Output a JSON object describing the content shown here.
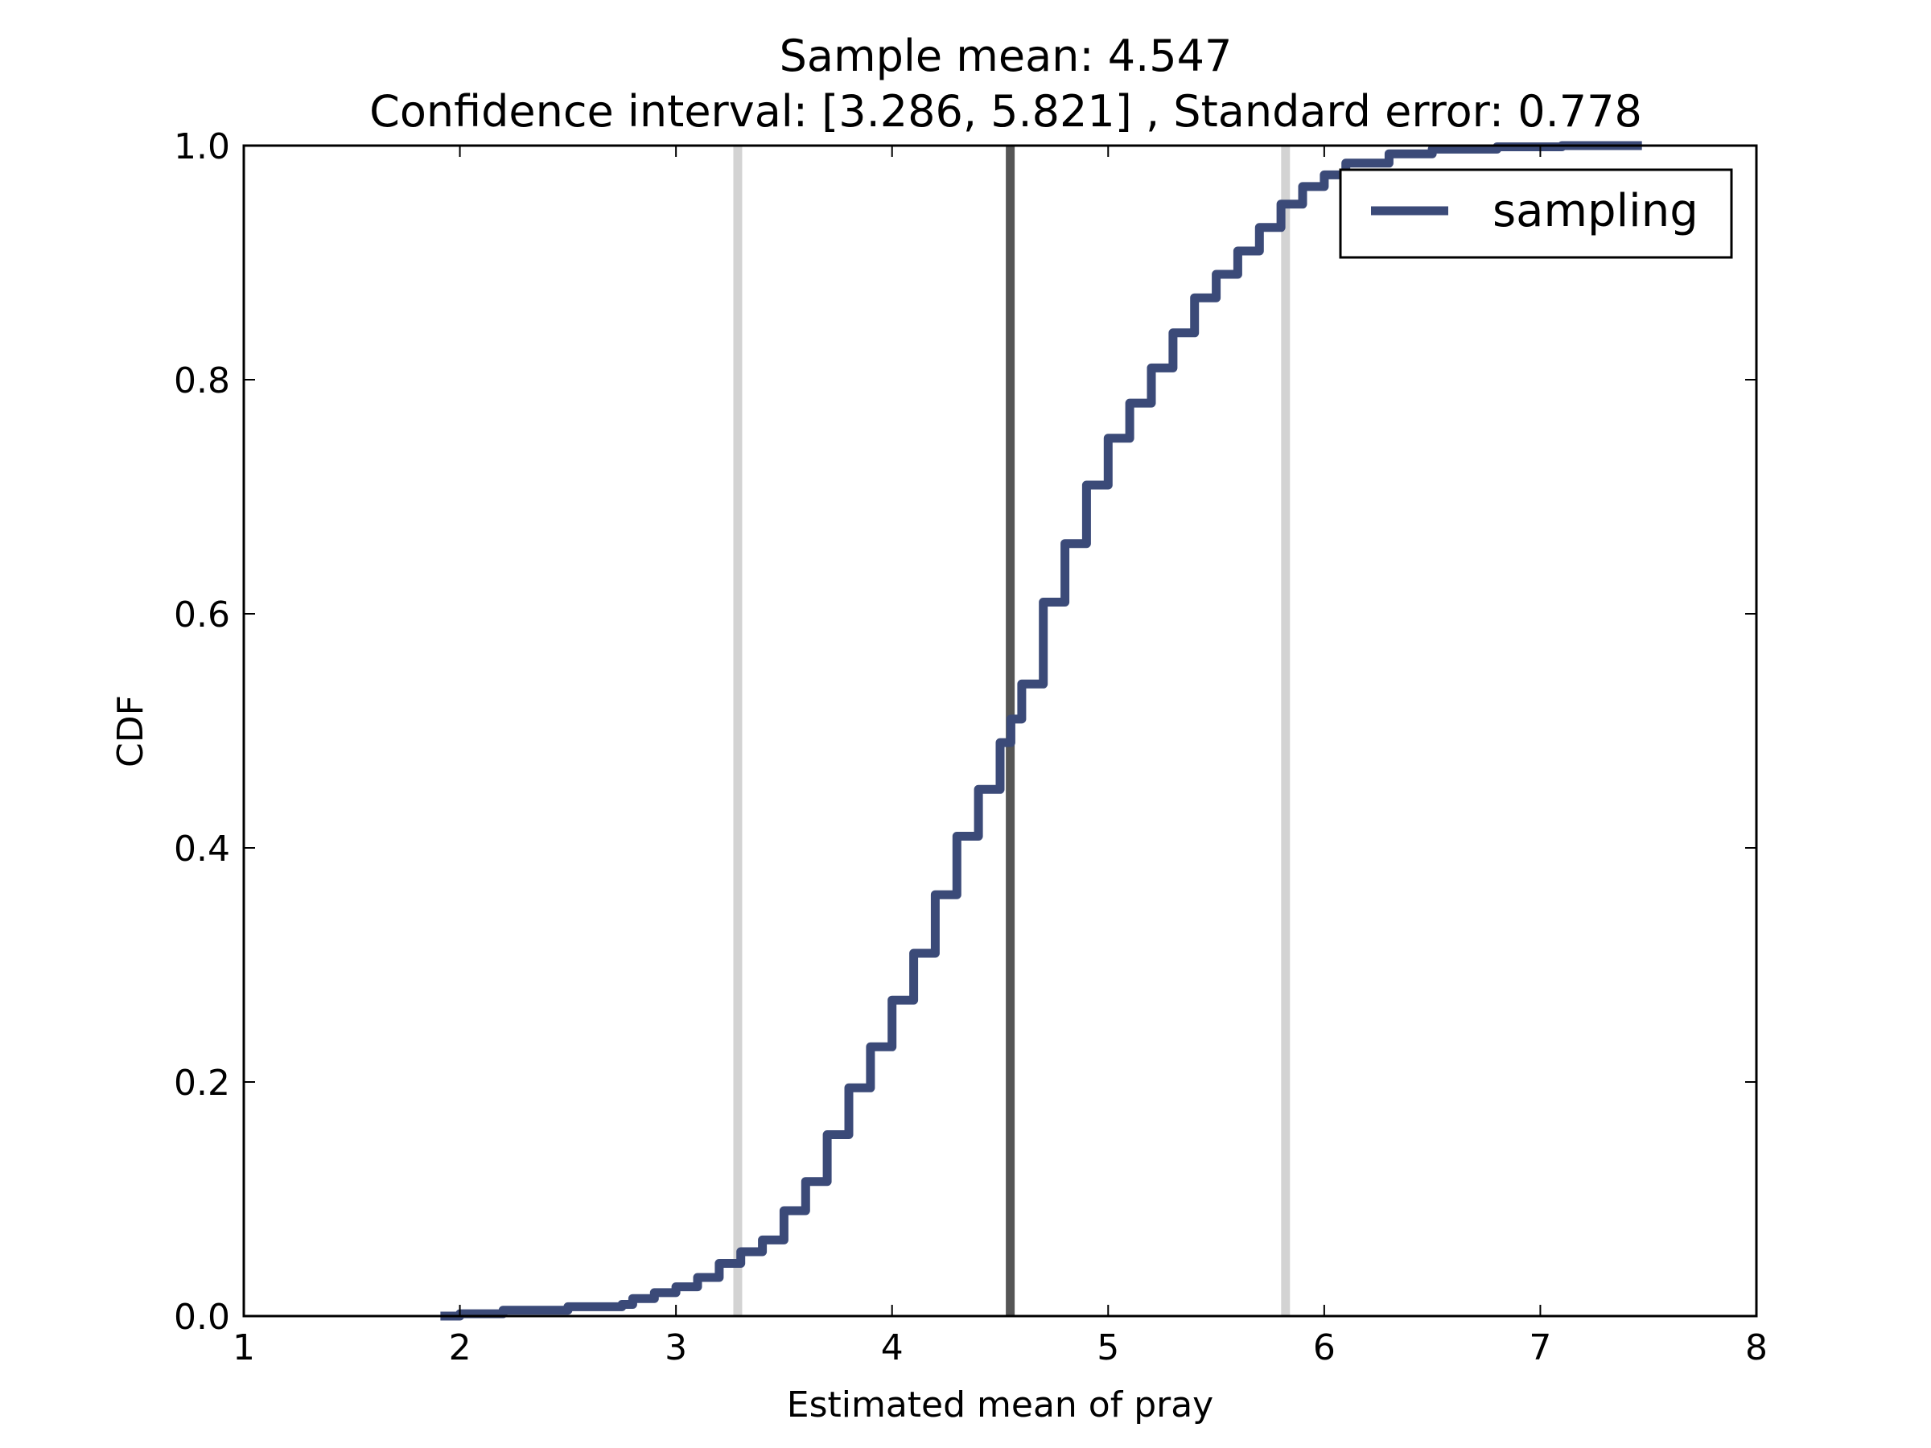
{
  "chart_data": {
    "type": "line",
    "title_line1": "Sample mean: 4.547",
    "title_line2": "Confidence interval: [3.286, 5.821] , Standard error: 0.778",
    "xlabel": "Estimated mean of pray",
    "ylabel": "CDF",
    "xlim": [
      1,
      8
    ],
    "ylim": [
      0,
      1
    ],
    "xticks": [
      1,
      2,
      3,
      4,
      5,
      6,
      7,
      8
    ],
    "xtick_labels": [
      "1",
      "2",
      "3",
      "4",
      "5",
      "6",
      "7",
      "8"
    ],
    "yticks": [
      0,
      0.2,
      0.4,
      0.6,
      0.8,
      1.0
    ],
    "ytick_labels": [
      "0.0",
      "0.2",
      "0.4",
      "0.6",
      "0.8",
      "1.0"
    ],
    "grid": false,
    "legend_position": "top-right",
    "series": [
      {
        "name": "sampling",
        "color": "#3b4a78",
        "x": [
          1.91,
          2.0,
          2.2,
          2.5,
          2.75,
          2.8,
          2.9,
          3.0,
          3.1,
          3.2,
          3.3,
          3.4,
          3.5,
          3.6,
          3.7,
          3.8,
          3.9,
          4.0,
          4.1,
          4.2,
          4.3,
          4.4,
          4.5,
          4.55,
          4.6,
          4.7,
          4.8,
          4.9,
          5.0,
          5.1,
          5.2,
          5.3,
          5.4,
          5.5,
          5.6,
          5.7,
          5.8,
          5.9,
          6.0,
          6.1,
          6.3,
          6.5,
          6.8,
          7.1,
          7.47
        ],
        "y": [
          0.0,
          0.002,
          0.005,
          0.008,
          0.01,
          0.015,
          0.02,
          0.025,
          0.033,
          0.045,
          0.055,
          0.065,
          0.09,
          0.115,
          0.155,
          0.195,
          0.23,
          0.27,
          0.31,
          0.36,
          0.41,
          0.45,
          0.49,
          0.51,
          0.54,
          0.61,
          0.66,
          0.71,
          0.75,
          0.78,
          0.81,
          0.84,
          0.87,
          0.89,
          0.91,
          0.93,
          0.95,
          0.965,
          0.975,
          0.985,
          0.993,
          0.997,
          0.999,
          1.0,
          1.0
        ]
      }
    ],
    "vlines": [
      {
        "name": "ci-lower",
        "x": 3.286,
        "color": "#d3d3d3"
      },
      {
        "name": "sample-mean",
        "x": 4.547,
        "color": "#555555"
      },
      {
        "name": "ci-upper",
        "x": 5.821,
        "color": "#d3d3d3"
      }
    ]
  }
}
